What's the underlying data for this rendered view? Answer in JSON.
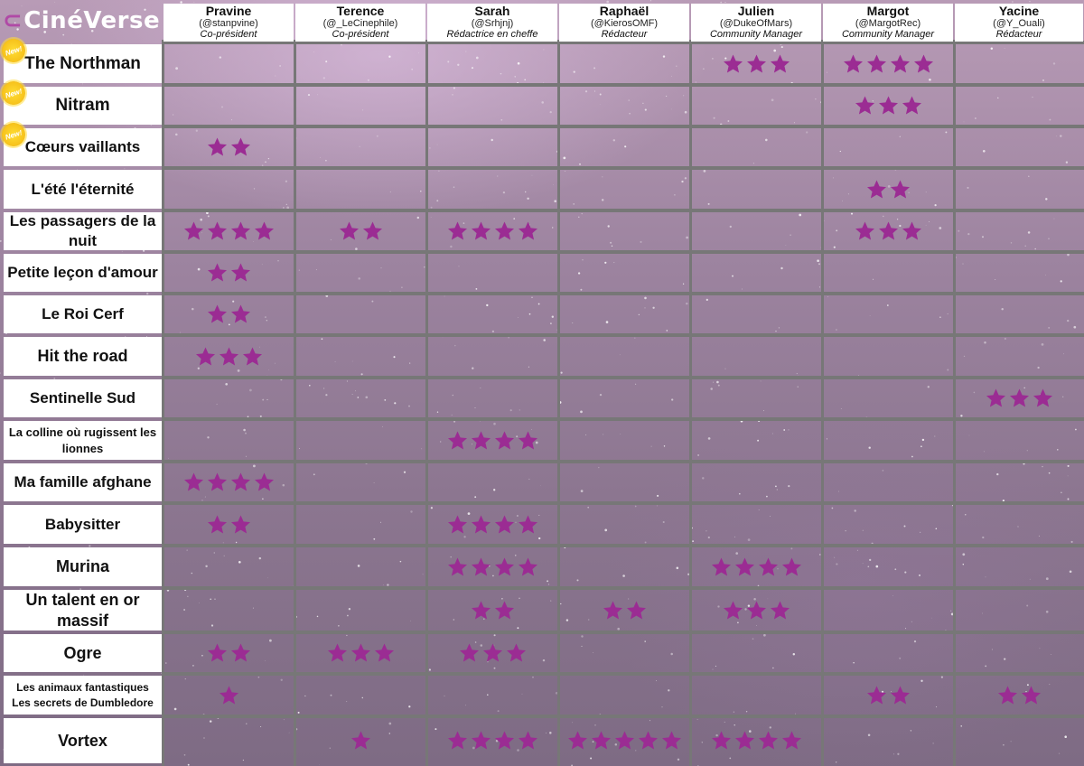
{
  "brand": "CinéVerse",
  "colors": {
    "star": "#9b2c93",
    "new_badge": "#f6c11b",
    "header_bg": "#ffffff",
    "grid_line": "#777777"
  },
  "columns": [
    {
      "name": "Pravine",
      "handle": "(@stanpvine)",
      "role": "Co-président"
    },
    {
      "name": "Terence",
      "handle": "(@_LeCinephile)",
      "role": "Co-président"
    },
    {
      "name": "Sarah",
      "handle": "(@Srhjnj)",
      "role": "Rédactrice en cheffe"
    },
    {
      "name": "Raphaël",
      "handle": "(@KierosOMF)",
      "role": "Rédacteur"
    },
    {
      "name": "Julien",
      "handle": "(@DukeOfMars)",
      "role": "Community Manager"
    },
    {
      "name": "Margot",
      "handle": "(@MargotRec)",
      "role": "Community Manager"
    },
    {
      "name": "Yacine",
      "handle": "(@Y_Ouali)",
      "role": "Rédacteur"
    }
  ],
  "new_badge_label": "New!",
  "movies": [
    {
      "title": "The Northman",
      "is_new": true,
      "ratings": [
        0,
        0,
        0,
        0,
        3,
        4,
        0
      ]
    },
    {
      "title": "Nitram",
      "is_new": true,
      "ratings": [
        0,
        0,
        0,
        0,
        0,
        3,
        0
      ]
    },
    {
      "title": "Cœurs vaillants",
      "is_new": true,
      "ratings": [
        2,
        0,
        0,
        0,
        0,
        0,
        0
      ]
    },
    {
      "title": "L'été l'éternité",
      "is_new": false,
      "ratings": [
        0,
        0,
        0,
        0,
        0,
        2,
        0
      ]
    },
    {
      "title": "Les passagers de la nuit",
      "is_new": false,
      "ratings": [
        4,
        2,
        4,
        0,
        0,
        3,
        0
      ]
    },
    {
      "title": "Petite leçon d'amour",
      "is_new": false,
      "ratings": [
        2,
        0,
        0,
        0,
        0,
        0,
        0
      ]
    },
    {
      "title": "Le Roi Cerf",
      "is_new": false,
      "ratings": [
        2,
        0,
        0,
        0,
        0,
        0,
        0
      ]
    },
    {
      "title": "Hit the road",
      "is_new": false,
      "ratings": [
        3,
        0,
        0,
        0,
        0,
        0,
        0
      ]
    },
    {
      "title": "Sentinelle Sud",
      "is_new": false,
      "ratings": [
        0,
        0,
        0,
        0,
        0,
        0,
        3
      ]
    },
    {
      "title": "La colline où rugissent les lionnes",
      "is_new": false,
      "ratings": [
        0,
        0,
        4,
        0,
        0,
        0,
        0
      ]
    },
    {
      "title": "Ma famille afghane",
      "is_new": false,
      "ratings": [
        4,
        0,
        0,
        0,
        0,
        0,
        0
      ]
    },
    {
      "title": "Babysitter",
      "is_new": false,
      "ratings": [
        2,
        0,
        4,
        0,
        0,
        0,
        0
      ]
    },
    {
      "title": "Murina",
      "is_new": false,
      "ratings": [
        0,
        0,
        4,
        0,
        4,
        0,
        0
      ]
    },
    {
      "title": "Un talent en or massif",
      "is_new": false,
      "ratings": [
        0,
        0,
        2,
        2,
        3,
        0,
        0
      ]
    },
    {
      "title": "Ogre",
      "is_new": false,
      "ratings": [
        2,
        3,
        3,
        0,
        0,
        0,
        0
      ]
    },
    {
      "title": "Les animaux fantastiques Les secrets de Dumbledore",
      "is_new": false,
      "ratings": [
        1,
        0,
        0,
        0,
        0,
        2,
        2
      ]
    },
    {
      "title": "Vortex",
      "is_new": false,
      "ratings": [
        0,
        1,
        4,
        5,
        4,
        0,
        0
      ]
    }
  ]
}
